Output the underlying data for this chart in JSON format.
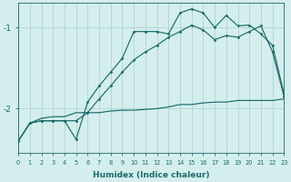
{
  "xlabel": "Humidex (Indice chaleur)",
  "bg_color": "#d4eeed",
  "grid_color": "#b0d4d0",
  "line_color": "#1a6b6b",
  "xlim": [
    0,
    23
  ],
  "ylim": [
    -2.55,
    -0.7
  ],
  "yticks": [
    -2,
    -1
  ],
  "xticks": [
    0,
    1,
    2,
    3,
    4,
    5,
    6,
    7,
    8,
    9,
    10,
    11,
    12,
    13,
    14,
    15,
    16,
    17,
    18,
    19,
    20,
    21,
    22,
    23
  ],
  "line1_x": [
    0,
    1,
    2,
    3,
    4,
    5,
    6,
    7,
    8,
    9,
    10,
    11,
    12,
    13,
    14,
    15,
    16,
    17,
    18,
    19,
    20,
    21,
    22,
    23
  ],
  "line1_y": [
    -2.4,
    -2.18,
    -2.15,
    -2.15,
    -2.15,
    -2.38,
    -1.92,
    -1.72,
    -1.55,
    -1.38,
    -1.05,
    -1.05,
    -1.05,
    -1.08,
    -0.82,
    -0.77,
    -0.82,
    -1.0,
    -0.85,
    -0.98,
    -0.97,
    -1.08,
    -1.22,
    -1.82
  ],
  "line2_x": [
    0,
    1,
    2,
    3,
    4,
    5,
    6,
    7,
    8,
    9,
    10,
    11,
    12,
    13,
    14,
    15,
    16,
    17,
    18,
    19,
    20,
    21,
    22,
    23
  ],
  "line2_y": [
    -2.4,
    -2.18,
    -2.15,
    -2.15,
    -2.15,
    -2.15,
    -2.05,
    -1.88,
    -1.72,
    -1.55,
    -1.4,
    -1.3,
    -1.22,
    -1.12,
    -1.05,
    -0.97,
    -1.03,
    -1.15,
    -1.1,
    -1.12,
    -1.05,
    -0.98,
    -1.3,
    -1.85
  ],
  "line3_x": [
    0,
    1,
    2,
    3,
    4,
    5,
    6,
    7,
    8,
    9,
    10,
    11,
    12,
    13,
    14,
    15,
    16,
    17,
    18,
    19,
    20,
    21,
    22,
    23
  ],
  "line3_y": [
    -2.4,
    -2.18,
    -2.12,
    -2.1,
    -2.1,
    -2.05,
    -2.05,
    -2.05,
    -2.03,
    -2.02,
    -2.02,
    -2.01,
    -2.0,
    -1.98,
    -1.95,
    -1.95,
    -1.93,
    -1.92,
    -1.92,
    -1.9,
    -1.9,
    -1.9,
    -1.9,
    -1.88
  ]
}
